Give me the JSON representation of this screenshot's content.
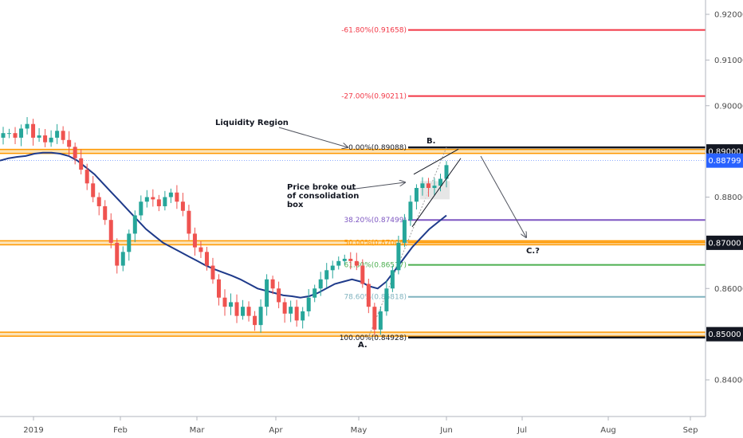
{
  "chart_data": {
    "type": "candlestick",
    "y_axis": {
      "range": [
        0.834,
        0.92
      ],
      "ticks": [
        "0.92000",
        "0.91000",
        "0.90000",
        "0.89000",
        "0.88000",
        "0.87000",
        "0.86000",
        "0.85000",
        "0.84000"
      ]
    },
    "x_axis": {
      "labels": [
        "2019",
        "Feb",
        "Mar",
        "Apr",
        "May",
        "Jun",
        "Jul",
        "Aug",
        "Sep"
      ]
    },
    "price_labels": [
      {
        "value": 0.89,
        "text": "0.89000",
        "style": "dark"
      },
      {
        "value": 0.88799,
        "text": "0.88799",
        "style": "blue"
      },
      {
        "value": 0.87,
        "text": "0.87000",
        "style": "dark"
      },
      {
        "value": 0.85,
        "text": "0.85000",
        "style": "dark"
      }
    ],
    "horizontal_levels": [
      {
        "value": 0.89,
        "color": "#ff9800"
      },
      {
        "value": 0.87,
        "color": "#ff9800"
      },
      {
        "value": 0.85,
        "color": "#ff9800"
      }
    ],
    "fib_levels": [
      {
        "label": "-61.80%(0.91658)",
        "value": 0.91658,
        "color": "#f23645"
      },
      {
        "label": "-27.00%(0.90211)",
        "value": 0.90211,
        "color": "#f23645"
      },
      {
        "label": "0.00%(0.89088)",
        "value": 0.89088,
        "color": "#131722"
      },
      {
        "label": "38.20%(0.87499)",
        "value": 0.87499,
        "color": "#7e57c2"
      },
      {
        "label": "50.00%(0.87008)",
        "value": 0.87008,
        "color": "#ff9800"
      },
      {
        "label": "61.80%(0.86517)",
        "value": 0.86517,
        "color": "#4caf50"
      },
      {
        "label": "78.60%(0.85818)",
        "value": 0.85818,
        "color": "#80b3bf"
      },
      {
        "label": "100.00%(0.84928)",
        "value": 0.84928,
        "color": "#131722"
      }
    ],
    "annotations": [
      {
        "text": "Liquidity Region"
      },
      {
        "text": "Price broke out"
      },
      {
        "text": "of consolidation"
      },
      {
        "text": "box"
      },
      {
        "text": "B."
      },
      {
        "text": "A."
      },
      {
        "text": "C.?"
      }
    ],
    "series_close": [
      0.894,
      0.894,
      0.893,
      0.895,
      0.896,
      0.893,
      0.8935,
      0.892,
      0.893,
      0.8945,
      0.8925,
      0.891,
      0.8885,
      0.886,
      0.883,
      0.88,
      0.878,
      0.875,
      0.87,
      0.865,
      0.868,
      0.872,
      0.876,
      0.879,
      0.88,
      0.8795,
      0.878,
      0.88,
      0.881,
      0.879,
      0.877,
      0.872,
      0.869,
      0.868,
      0.865,
      0.862,
      0.858,
      0.856,
      0.857,
      0.854,
      0.856,
      0.854,
      0.852,
      0.856,
      0.862,
      0.86,
      0.857,
      0.8545,
      0.856,
      0.853,
      0.855,
      0.858,
      0.86,
      0.862,
      0.864,
      0.865,
      0.866,
      0.8665,
      0.866,
      0.865,
      0.861,
      0.856,
      0.851,
      0.855,
      0.86,
      0.864,
      0.87,
      0.875,
      0.879,
      0.882,
      0.883,
      0.882,
      0.8825,
      0.884,
      0.887
    ],
    "ma_close": [
      0.888,
      0.8885,
      0.8888,
      0.889,
      0.8895,
      0.8897,
      0.8897,
      0.8895,
      0.889,
      0.888,
      0.8865,
      0.885,
      0.883,
      0.881,
      0.879,
      0.877,
      0.875,
      0.873,
      0.8715,
      0.87,
      0.869,
      0.868,
      0.867,
      0.866,
      0.865,
      0.8642,
      0.8635,
      0.8628,
      0.862,
      0.861,
      0.86,
      0.8595,
      0.859,
      0.8585,
      0.8583,
      0.858,
      0.8583,
      0.859,
      0.86,
      0.861,
      0.8615,
      0.862,
      0.8615,
      0.8605,
      0.86,
      0.8615,
      0.864,
      0.8665,
      0.869,
      0.871,
      0.873,
      0.8745,
      0.876
    ]
  }
}
